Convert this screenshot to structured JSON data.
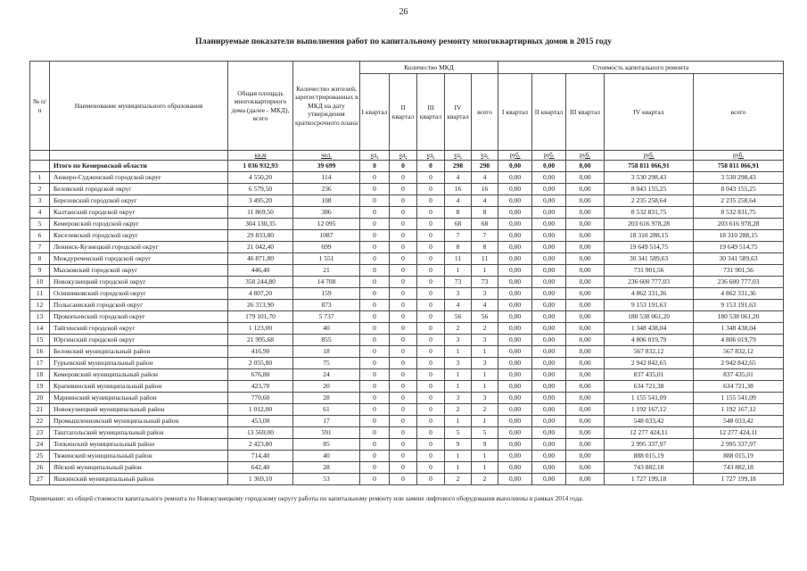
{
  "page": {
    "number": "26",
    "title": "Планируемые показатели выполнения работ по капитальному ремонту многоквартирных домов в 2015 году",
    "footnote": "Примечание: из общей стоимости капитального ремонта по Новокузнецкому городскому округу работы по капитальному ремонту или замене лифтового оборудования выполнены в рамках 2014 года."
  },
  "table": {
    "headers": {
      "num": "№ п/п",
      "name": "Наименование муниципального образования",
      "area": "Общая площадь многоквар­тирного дома (далее - МКД), всего",
      "residents": "Количество жителей, зарегистри­рованных в МКД на дату утверждения краткосрочного плана",
      "mkd_count_group": "Количество  МКД",
      "cost_group": "Стоимость капитального ремонта",
      "quarters": [
        "I квартал",
        "II квартал",
        "III квартал",
        "IV квартал",
        "всего"
      ]
    },
    "units": [
      "кв.м",
      "чел.",
      "ед.",
      "ед.",
      "ед.",
      "ед.",
      "ед.",
      "руб.",
      "руб.",
      "руб.",
      "руб.",
      "руб."
    ],
    "total_row": {
      "num": "",
      "name": "Итого по Кемеровской области",
      "area": "1 036 932,93",
      "residents": "39 699",
      "q1": "0",
      "q2": "0",
      "q3": "0",
      "q4": "298",
      "q_total": "298",
      "c1": "0,00",
      "c2": "0,00",
      "c3": "0,00",
      "c4": "758 811 066,91",
      "c_total": "758 811 066,91"
    },
    "rows": [
      {
        "num": "1",
        "name": "Анжеро-Судженский городской округ",
        "area": "4 550,20",
        "residents": "114",
        "q1": "0",
        "q2": "0",
        "q3": "0",
        "q4": "4",
        "q_total": "4",
        "c1": "0,00",
        "c2": "0,00",
        "c3": "0,00",
        "c4": "3 530 298,43",
        "c_total": "3 530 298,43"
      },
      {
        "num": "2",
        "name": "Беловский городской округ",
        "area": "6 579,50",
        "residents": "236",
        "q1": "0",
        "q2": "0",
        "q3": "0",
        "q4": "16",
        "q_total": "16",
        "c1": "0,00",
        "c2": "0,00",
        "c3": "0,00",
        "c4": "8 043 155,25",
        "c_total": "8 043 155,25"
      },
      {
        "num": "3",
        "name": "Березовский городской округ",
        "area": "3 495,20",
        "residents": "108",
        "q1": "0",
        "q2": "0",
        "q3": "0",
        "q4": "4",
        "q_total": "4",
        "c1": "0,00",
        "c2": "0,00",
        "c3": "0,00",
        "c4": "2 235 258,64",
        "c_total": "2 235 258,64"
      },
      {
        "num": "4",
        "name": "Калтанский  городской округ",
        "area": "11 869,50",
        "residents": "386",
        "q1": "0",
        "q2": "0",
        "q3": "0",
        "q4": "8",
        "q_total": "8",
        "c1": "0,00",
        "c2": "0,00",
        "c3": "0,00",
        "c4": "8 532 831,75",
        "c_total": "8 532 831,75"
      },
      {
        "num": "5",
        "name": "Кемеровский городской округ",
        "area": "304 130,35",
        "residents": "12 095",
        "q1": "0",
        "q2": "0",
        "q3": "0",
        "q4": "68",
        "q_total": "68",
        "c1": "0,00",
        "c2": "0,00",
        "c3": "0,00",
        "c4": "203 616 978,28",
        "c_total": "203 616 978,28"
      },
      {
        "num": "6",
        "name": "Киселевский городской округ",
        "area": "29 833,80",
        "residents": "1087",
        "q1": "0",
        "q2": "0",
        "q3": "0",
        "q4": "7",
        "q_total": "7",
        "c1": "0,00",
        "c2": "0,00",
        "c3": "0,00",
        "c4": "18 310 288,15",
        "c_total": "18 310 288,15"
      },
      {
        "num": "7",
        "name": "Ленинск-Кузнецкий городской округ",
        "area": "21 042,40",
        "residents": "699",
        "q1": "0",
        "q2": "0",
        "q3": "0",
        "q4": "8",
        "q_total": "8",
        "c1": "0,00",
        "c2": "0,00",
        "c3": "0,00",
        "c4": "19 649 514,75",
        "c_total": "19 649 514,75"
      },
      {
        "num": "8",
        "name": "Междуреченский городской округ",
        "area": "46 871,80",
        "residents": "1 551",
        "q1": "0",
        "q2": "0",
        "q3": "0",
        "q4": "11",
        "q_total": "11",
        "c1": "0,00",
        "c2": "0,00",
        "c3": "0,00",
        "c4": "30 341 589,63",
        "c_total": "30 341 589,63"
      },
      {
        "num": "9",
        "name": "Мысковский городской округ",
        "area": "446,40",
        "residents": "21",
        "q1": "0",
        "q2": "0",
        "q3": "0",
        "q4": "1",
        "q_total": "1",
        "c1": "0,00",
        "c2": "0,00",
        "c3": "0,00",
        "c4": "731 901,56",
        "c_total": "731 901,56"
      },
      {
        "num": "10",
        "name": "Новокузнецкий городской округ",
        "area": "350 244,80",
        "residents": "14 708",
        "q1": "0",
        "q2": "0",
        "q3": "0",
        "q4": "73",
        "q_total": "73",
        "c1": "0,00",
        "c2": "0,00",
        "c3": "0,00",
        "c4": "236 600 777,03",
        "c_total": "236 600 777,03"
      },
      {
        "num": "11",
        "name": "Осинниковский городской округ",
        "area": "4 807,20",
        "residents": "159",
        "q1": "0",
        "q2": "0",
        "q3": "0",
        "q4": "3",
        "q_total": "3",
        "c1": "0,00",
        "c2": "0,00",
        "c3": "0,00",
        "c4": "4 862 331,36",
        "c_total": "4 862 331,36"
      },
      {
        "num": "12",
        "name": "Полысаевский городской округ",
        "area": "26 313,90",
        "residents": "873",
        "q1": "0",
        "q2": "0",
        "q3": "0",
        "q4": "4",
        "q_total": "4",
        "c1": "0,00",
        "c2": "0,00",
        "c3": "0,00",
        "c4": "9 153 191,63",
        "c_total": "9 153 191,63"
      },
      {
        "num": "13",
        "name": "Прокопьевский городской округ",
        "area": "179 101,70",
        "residents": "5 737",
        "q1": "0",
        "q2": "0",
        "q3": "0",
        "q4": "56",
        "q_total": "56",
        "c1": "0,00",
        "c2": "0,00",
        "c3": "0,00",
        "c4": "180 538 061,20",
        "c_total": "180 538 061,20"
      },
      {
        "num": "14",
        "name": "Тайгинский городской округ",
        "area": "1 123,00",
        "residents": "40",
        "q1": "0",
        "q2": "0",
        "q3": "0",
        "q4": "2",
        "q_total": "2",
        "c1": "0,00",
        "c2": "0,00",
        "c3": "0,00",
        "c4": "1 348 438,04",
        "c_total": "1 348 438,04"
      },
      {
        "num": "15",
        "name": "Юргинский городской округ",
        "area": "21 995,68",
        "residents": "855",
        "q1": "0",
        "q2": "0",
        "q3": "0",
        "q4": "3",
        "q_total": "3",
        "c1": "0,00",
        "c2": "0,00",
        "c3": "0,00",
        "c4": "4 806 019,79",
        "c_total": "4 806 019,79"
      },
      {
        "num": "16",
        "name": "Беловский муниципальный район",
        "area": "416,90",
        "residents": "18",
        "q1": "0",
        "q2": "0",
        "q3": "0",
        "q4": "1",
        "q_total": "1",
        "c1": "0,00",
        "c2": "0,00",
        "c3": "0,00",
        "c4": "567 832,12",
        "c_total": "567 832,12"
      },
      {
        "num": "17",
        "name": "Гурьевский муниципальный район",
        "area": "2 055,80",
        "residents": "75",
        "q1": "0",
        "q2": "0",
        "q3": "0",
        "q4": "3",
        "q_total": "3",
        "c1": "0,00",
        "c2": "0,00",
        "c3": "0,00",
        "c4": "2 942 842,65",
        "c_total": "2 942 842,65"
      },
      {
        "num": "18",
        "name": "Кемеровский муниципальный район",
        "area": "676,80",
        "residents": "24",
        "q1": "0",
        "q2": "0",
        "q3": "0",
        "q4": "1",
        "q_total": "1",
        "c1": "0,00",
        "c2": "0,00",
        "c3": "0,00",
        "c4": "837 435,01",
        "c_total": "837 435,01"
      },
      {
        "num": "19",
        "name": "Крапивинский муниципальный район",
        "area": "423,70",
        "residents": "20",
        "q1": "0",
        "q2": "0",
        "q3": "0",
        "q4": "1",
        "q_total": "1",
        "c1": "0,00",
        "c2": "0,00",
        "c3": "0,00",
        "c4": "634 721,38",
        "c_total": "634 721,38"
      },
      {
        "num": "20",
        "name": "Мариинский муниципальный район",
        "area": "770,60",
        "residents": "28",
        "q1": "0",
        "q2": "0",
        "q3": "0",
        "q4": "3",
        "q_total": "3",
        "c1": "0,00",
        "c2": "0,00",
        "c3": "0,00",
        "c4": "1 155 541,09",
        "c_total": "1 155 541,09"
      },
      {
        "num": "21",
        "name": "Новокузнецкий муниципальный район",
        "area": "1 012,00",
        "residents": "61",
        "q1": "0",
        "q2": "0",
        "q3": "0",
        "q4": "2",
        "q_total": "2",
        "c1": "0,00",
        "c2": "0,00",
        "c3": "0,00",
        "c4": "1 192 167,12",
        "c_total": "1 192 167,12"
      },
      {
        "num": "22",
        "name": "Промышленновский муниципальный район",
        "area": "453,00",
        "residents": "17",
        "q1": "0",
        "q2": "0",
        "q3": "0",
        "q4": "1",
        "q_total": "1",
        "c1": "0,00",
        "c2": "0,00",
        "c3": "0,00",
        "c4": "548 033,42",
        "c_total": "548 033,42"
      },
      {
        "num": "23",
        "name": "Таштагольский муниципальный район",
        "area": "13 569,00",
        "residents": "591",
        "q1": "0",
        "q2": "0",
        "q3": "0",
        "q4": "5",
        "q_total": "5",
        "c1": "0,00",
        "c2": "0,00",
        "c3": "0,00",
        "c4": "12 277 424,11",
        "c_total": "12 277 424,11"
      },
      {
        "num": "24",
        "name": "Топкинский муниципальный район",
        "area": "2 423,80",
        "residents": "85",
        "q1": "0",
        "q2": "0",
        "q3": "0",
        "q4": "9",
        "q_total": "9",
        "c1": "0,00",
        "c2": "0,00",
        "c3": "0,00",
        "c4": "2 995 337,97",
        "c_total": "2 995 337,97"
      },
      {
        "num": "25",
        "name": "Тяжинский муниципальный район",
        "area": "714,40",
        "residents": "40",
        "q1": "0",
        "q2": "0",
        "q3": "0",
        "q4": "1",
        "q_total": "1",
        "c1": "0,00",
        "c2": "0,00",
        "c3": "0,00",
        "c4": "888 015,19",
        "c_total": "888 015,19"
      },
      {
        "num": "26",
        "name": "Яйский муниципальный район",
        "area": "642,40",
        "residents": "28",
        "q1": "0",
        "q2": "0",
        "q3": "0",
        "q4": "1",
        "q_total": "1",
        "c1": "0,00",
        "c2": "0,00",
        "c3": "0,00",
        "c4": "743 882,18",
        "c_total": "743 882,18"
      },
      {
        "num": "27",
        "name": "Яшкинский муниципальный район",
        "area": "1 369,10",
        "residents": "53",
        "q1": "0",
        "q2": "0",
        "q3": "0",
        "q4": "2",
        "q_total": "2",
        "c1": "0,00",
        "c2": "0,00",
        "c3": "0,00",
        "c4": "1 727 199,18",
        "c_total": "1 727 199,18"
      }
    ]
  }
}
